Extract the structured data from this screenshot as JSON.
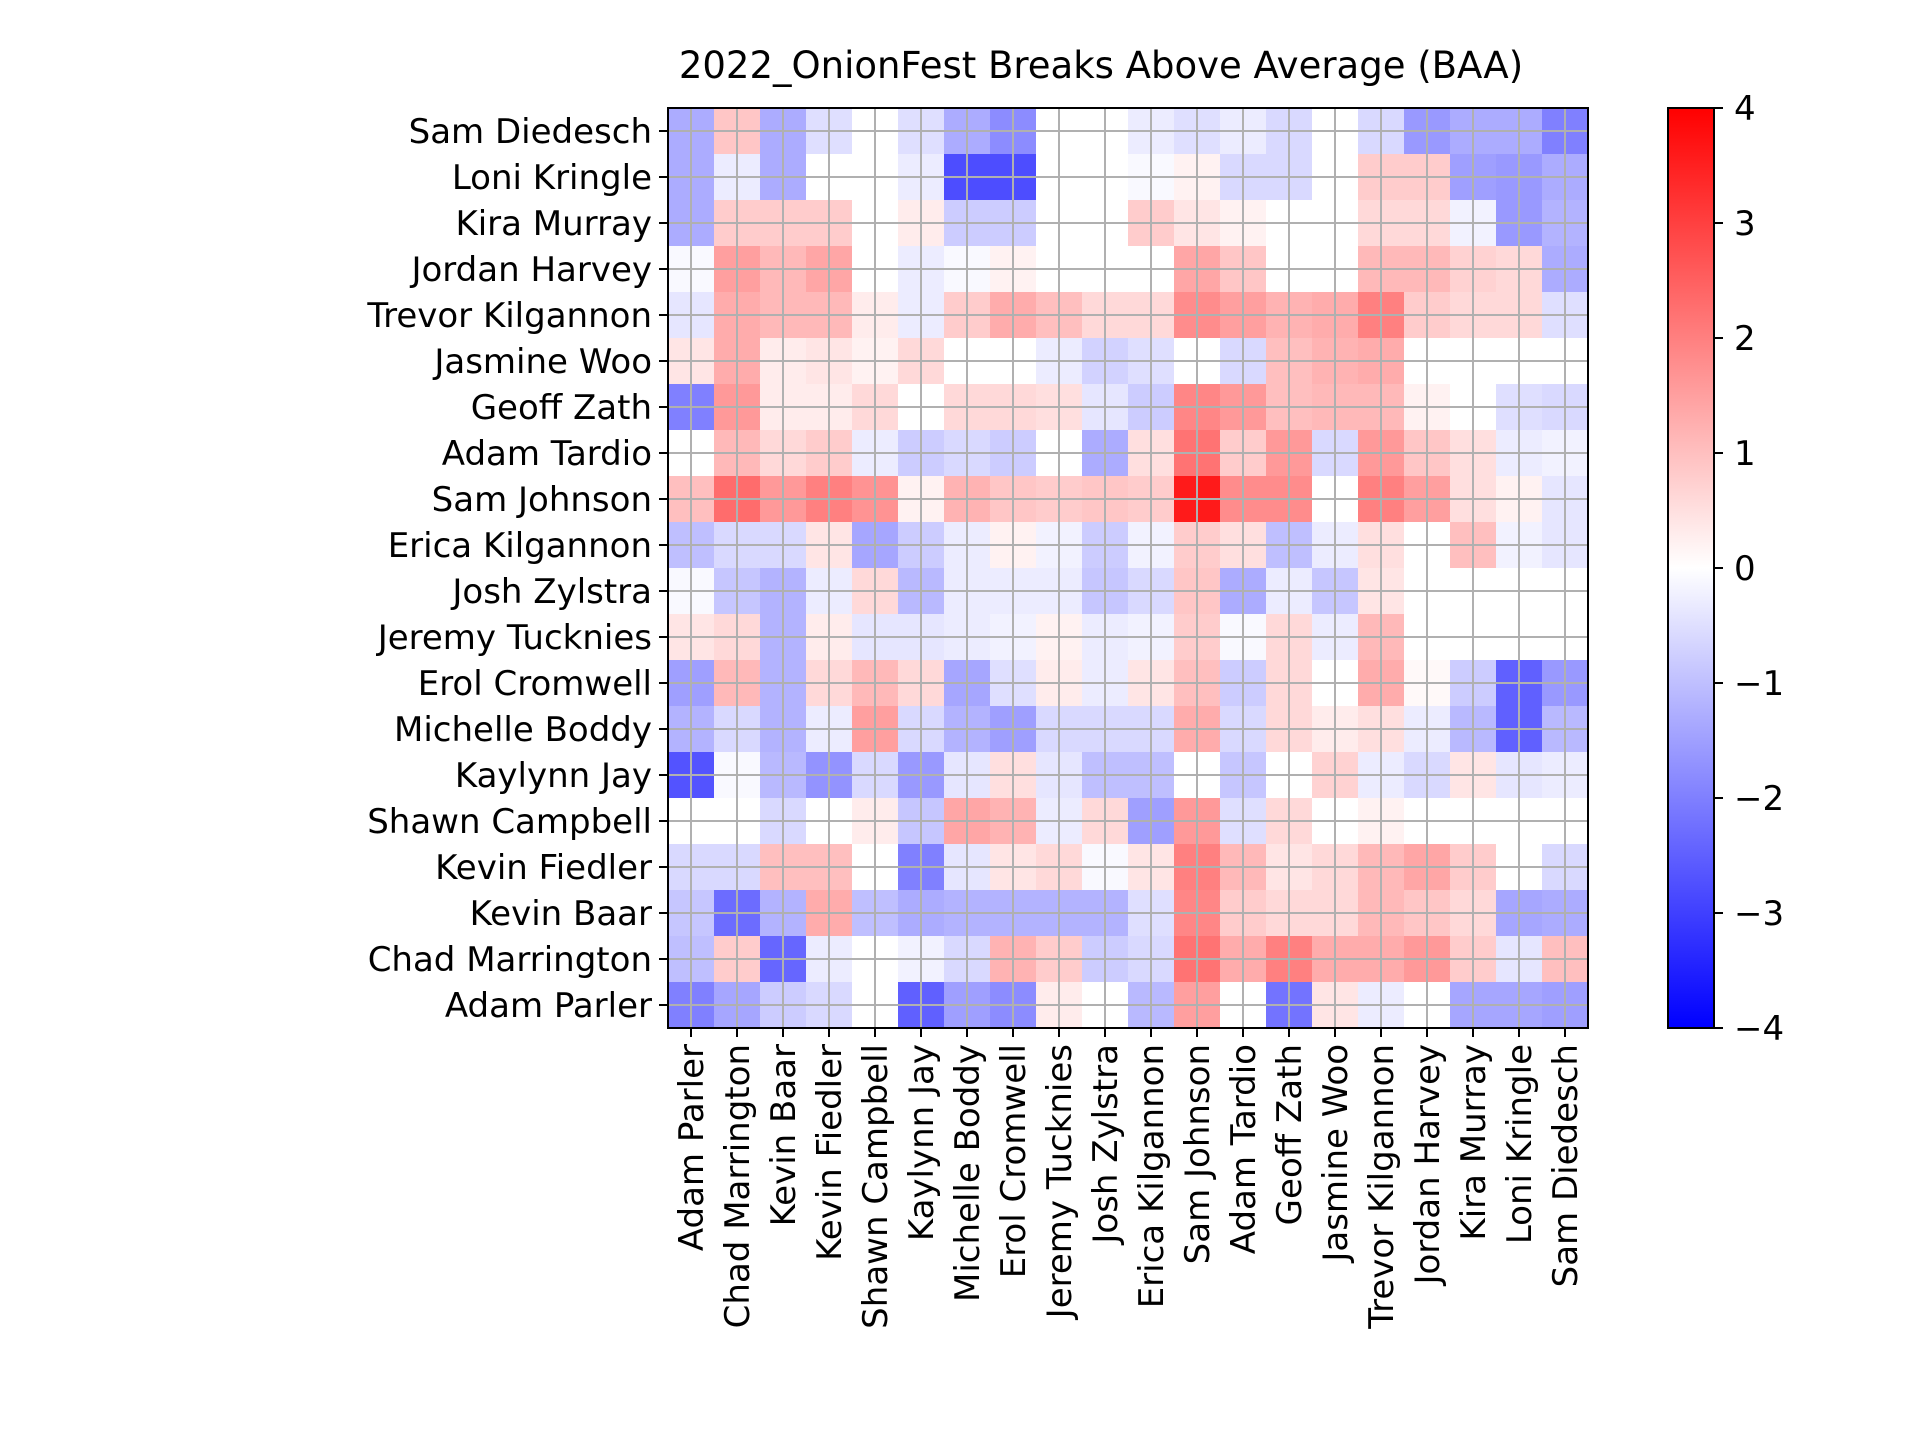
{
  "chart_data": {
    "type": "heatmap",
    "title": "2022_OnionFest Breaks Above Average (BAA)",
    "x_labels": [
      "Adam Parler",
      "Chad Marrington",
      "Kevin Baar",
      "Kevin Fiedler",
      "Shawn Campbell",
      "Kaylynn Jay",
      "Michelle Boddy",
      "Erol Cromwell",
      "Jeremy Tucknies",
      "Josh Zylstra",
      "Erica Kilgannon",
      "Sam Johnson",
      "Adam Tardio",
      "Geoff Zath",
      "Jasmine Woo",
      "Trevor Kilgannon",
      "Jordan Harvey",
      "Kira Murray",
      "Loni Kringle",
      "Sam Diedesch"
    ],
    "y_labels": [
      "Sam Diedesch",
      "Loni Kringle",
      "Kira Murray",
      "Jordan Harvey",
      "Trevor Kilgannon",
      "Jasmine Woo",
      "Geoff Zath",
      "Adam Tardio",
      "Sam Johnson",
      "Erica Kilgannon",
      "Josh Zylstra",
      "Jeremy Tucknies",
      "Erol Cromwell",
      "Michelle Boddy",
      "Kaylynn Jay",
      "Shawn Campbell",
      "Kevin Fiedler",
      "Kevin Baar",
      "Chad Marrington",
      "Adam Parler"
    ],
    "values": [
      [
        -1.3,
        0.9,
        -1.3,
        -0.5,
        0,
        -0.5,
        -1.3,
        -1.8,
        0,
        0,
        -0.3,
        -0.5,
        -0.3,
        -0.6,
        0,
        -0.6,
        -1.6,
        -1.3,
        -1.3,
        -2.0
      ],
      [
        -1.3,
        -0.3,
        -1.3,
        0,
        0,
        -0.3,
        -2.8,
        -2.8,
        0,
        0,
        -0.1,
        0.2,
        -0.6,
        -0.6,
        0,
        0.8,
        0.8,
        -1.5,
        -1.6,
        -1.3
      ],
      [
        -1.3,
        0.8,
        0.8,
        0.8,
        0,
        0.3,
        -0.8,
        -0.8,
        0,
        0,
        0.8,
        0.4,
        0.2,
        0,
        0,
        0.6,
        0.6,
        -0.2,
        -1.6,
        -1.2
      ],
      [
        -0.1,
        1.5,
        1.1,
        1.4,
        0,
        -0.3,
        -0.1,
        0.2,
        0,
        0,
        0,
        1.4,
        0.9,
        0,
        0,
        1.1,
        1.1,
        0.7,
        0.6,
        -1.3
      ],
      [
        -0.4,
        1.3,
        1.1,
        1.1,
        0.3,
        -0.3,
        0.8,
        1.3,
        1.0,
        0.6,
        0.6,
        1.8,
        1.5,
        1.2,
        1.3,
        2.0,
        0.8,
        0.6,
        0.6,
        -0.5
      ],
      [
        0.4,
        1.3,
        0.3,
        0.4,
        0.2,
        0.6,
        0,
        0,
        -0.3,
        -0.7,
        -0.5,
        0,
        -0.6,
        1.0,
        1.2,
        1.3,
        0,
        0,
        0,
        0
      ],
      [
        -2.0,
        1.6,
        0.3,
        0.3,
        0.6,
        0,
        0.6,
        0.6,
        0.5,
        -0.4,
        -0.8,
        1.9,
        1.6,
        1.0,
        1.1,
        1.1,
        0.2,
        0,
        -0.5,
        -0.6
      ],
      [
        0,
        1.1,
        0.6,
        0.8,
        -0.3,
        -0.8,
        -0.6,
        -0.8,
        0,
        -1.3,
        0.5,
        2.2,
        0.8,
        1.6,
        -0.6,
        1.6,
        0.9,
        0.5,
        -0.3,
        -0.2
      ],
      [
        1.0,
        2.3,
        1.6,
        2.0,
        1.7,
        0.2,
        1.2,
        0.9,
        0.8,
        0.9,
        0.8,
        3.6,
        1.8,
        1.8,
        0,
        2.0,
        1.5,
        0.5,
        0.2,
        -0.4
      ],
      [
        -1.0,
        -0.6,
        -0.6,
        0.4,
        -1.4,
        -0.8,
        -0.3,
        0.2,
        -0.2,
        -0.8,
        -0.2,
        0.8,
        0.5,
        -1.0,
        -0.3,
        0.5,
        0,
        1.0,
        -0.2,
        -0.4
      ],
      [
        -0.1,
        -0.9,
        -1.2,
        -0.3,
        0.6,
        -1.1,
        -0.3,
        -0.3,
        -0.3,
        -0.9,
        -0.6,
        0.9,
        -1.3,
        -0.3,
        -0.9,
        0.4,
        0,
        0,
        0,
        0
      ],
      [
        0.4,
        0.6,
        -1.2,
        0.3,
        -0.4,
        -0.4,
        -0.3,
        -0.2,
        0.2,
        -0.3,
        -0.2,
        0.8,
        -0.1,
        0.6,
        -0.3,
        1.1,
        0,
        0,
        0,
        0
      ],
      [
        -1.5,
        1.1,
        -1.2,
        0.6,
        1.1,
        0.6,
        -1.4,
        -0.5,
        0.3,
        -0.3,
        0.4,
        1.0,
        -0.8,
        0.6,
        0,
        1.3,
        0.1,
        -0.8,
        -2.5,
        -1.6
      ],
      [
        -1.2,
        -0.6,
        -1.2,
        -0.3,
        1.5,
        -0.6,
        -1.2,
        -1.5,
        -0.6,
        -0.6,
        -0.6,
        1.3,
        -0.6,
        0.6,
        0.3,
        0.5,
        -0.3,
        -1.1,
        -2.5,
        -1.1
      ],
      [
        -2.7,
        -0.1,
        -1.1,
        -1.7,
        -0.6,
        -1.6,
        -0.4,
        0.5,
        -0.4,
        -1.0,
        -1.0,
        0,
        -0.9,
        0,
        0.7,
        -0.3,
        -0.6,
        0.4,
        -0.4,
        -0.3
      ],
      [
        0,
        0,
        -0.6,
        0,
        0.3,
        -0.9,
        1.4,
        1.2,
        -0.3,
        0.6,
        -1.5,
        1.6,
        -0.5,
        0.6,
        0,
        0.2,
        0,
        0,
        0,
        0
      ],
      [
        -0.6,
        -0.6,
        1.0,
        1.0,
        0,
        -2.0,
        -0.4,
        0.4,
        0.6,
        -0.1,
        0.4,
        2.0,
        1.1,
        0.4,
        0.6,
        1.1,
        1.4,
        0.8,
        0,
        -0.6
      ],
      [
        -0.9,
        -2.3,
        -1.2,
        1.3,
        -1.0,
        -1.3,
        -1.2,
        -1.2,
        -1.2,
        -1.2,
        -0.5,
        1.9,
        0.8,
        0.6,
        0.6,
        1.1,
        0.9,
        0.6,
        -1.4,
        -1.3
      ],
      [
        -1.0,
        0.8,
        -2.4,
        -0.3,
        0,
        -0.2,
        -0.6,
        1.2,
        0.8,
        -0.8,
        -0.6,
        2.2,
        1.3,
        2.0,
        1.3,
        1.3,
        1.6,
        0.8,
        -0.4,
        1.0
      ],
      [
        -2.0,
        -1.4,
        -0.8,
        -0.6,
        0,
        -2.5,
        -1.5,
        -1.8,
        0.3,
        0,
        -1.1,
        1.5,
        0,
        -2.2,
        0.4,
        -0.3,
        0,
        -1.4,
        -1.4,
        -1.5
      ]
    ],
    "vmin": -4,
    "vmax": 4,
    "colormap": [
      "#0000ff",
      "#ffffff",
      "#ff0000"
    ],
    "colorbar_ticks": [
      "4",
      "3",
      "2",
      "1",
      "0",
      "−1",
      "−2",
      "−3",
      "−4"
    ],
    "grid": true,
    "grid_color": "#b0b0b0"
  }
}
